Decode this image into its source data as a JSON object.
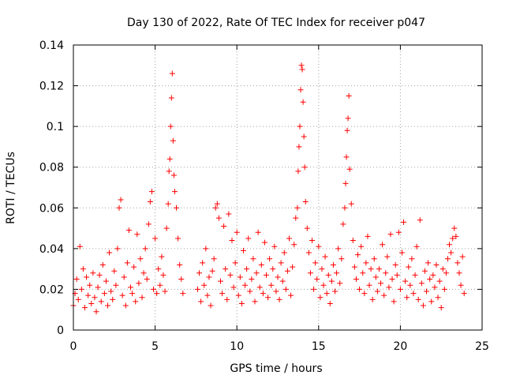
{
  "chart_data": {
    "type": "scatter",
    "title": "Day 130 of 2022, Rate Of TEC Index for receiver p047",
    "xlabel": "GPS time / hours",
    "ylabel": "ROTI / TECUs",
    "xlim": [
      0,
      25
    ],
    "ylim": [
      0,
      0.14
    ],
    "xticks": [
      0,
      5,
      10,
      15,
      20,
      25
    ],
    "xtick_labels": [
      "0",
      "5",
      "10",
      "15",
      "20",
      "25"
    ],
    "yticks": [
      0,
      0.02,
      0.04,
      0.06,
      0.08,
      0.1,
      0.12,
      0.14
    ],
    "ytick_labels": [
      "0",
      "0.02",
      "0.04",
      "0.06",
      "0.08",
      "0.1",
      "0.12",
      "0.14"
    ],
    "grid": true,
    "marker": "+",
    "color": "#ff0000",
    "series": [
      {
        "points": [
          [
            0.0,
            0.012
          ],
          [
            0.1,
            0.018
          ],
          [
            0.2,
            0.025
          ],
          [
            0.3,
            0.015
          ],
          [
            0.4,
            0.041
          ],
          [
            0.5,
            0.02
          ],
          [
            0.6,
            0.03
          ],
          [
            0.7,
            0.011
          ],
          [
            0.8,
            0.026
          ],
          [
            0.9,
            0.017
          ],
          [
            1.0,
            0.022
          ],
          [
            1.1,
            0.013
          ],
          [
            1.2,
            0.028
          ],
          [
            1.3,
            0.016
          ],
          [
            1.4,
            0.009
          ],
          [
            1.5,
            0.021
          ],
          [
            1.6,
            0.027
          ],
          [
            1.7,
            0.014
          ],
          [
            1.8,
            0.032
          ],
          [
            1.9,
            0.018
          ],
          [
            2.0,
            0.024
          ],
          [
            2.1,
            0.012
          ],
          [
            2.2,
            0.038
          ],
          [
            2.3,
            0.019
          ],
          [
            2.4,
            0.015
          ],
          [
            2.5,
            0.029
          ],
          [
            2.6,
            0.022
          ],
          [
            2.7,
            0.04
          ],
          [
            2.8,
            0.06
          ],
          [
            2.9,
            0.064
          ],
          [
            3.0,
            0.017
          ],
          [
            3.1,
            0.026
          ],
          [
            3.2,
            0.012
          ],
          [
            3.3,
            0.033
          ],
          [
            3.4,
            0.049
          ],
          [
            3.5,
            0.021
          ],
          [
            3.6,
            0.018
          ],
          [
            3.7,
            0.031
          ],
          [
            3.8,
            0.014
          ],
          [
            3.9,
            0.047
          ],
          [
            4.0,
            0.023
          ],
          [
            4.1,
            0.035
          ],
          [
            4.2,
            0.016
          ],
          [
            4.3,
            0.028
          ],
          [
            4.4,
            0.04
          ],
          [
            4.5,
            0.025
          ],
          [
            4.6,
            0.052
          ],
          [
            4.7,
            0.063
          ],
          [
            4.8,
            0.068
          ],
          [
            4.9,
            0.02
          ],
          [
            5.0,
            0.045
          ],
          [
            5.1,
            0.018
          ],
          [
            5.2,
            0.03
          ],
          [
            5.3,
            0.022
          ],
          [
            5.4,
            0.036
          ],
          [
            5.5,
            0.027
          ],
          [
            5.6,
            0.019
          ],
          [
            5.7,
            0.05
          ],
          [
            5.8,
            0.062
          ],
          [
            5.85,
            0.078
          ],
          [
            5.9,
            0.084
          ],
          [
            5.95,
            0.1
          ],
          [
            6.0,
            0.114
          ],
          [
            6.05,
            0.126
          ],
          [
            6.1,
            0.093
          ],
          [
            6.15,
            0.076
          ],
          [
            6.2,
            0.068
          ],
          [
            6.3,
            0.06
          ],
          [
            6.4,
            0.045
          ],
          [
            6.5,
            0.032
          ],
          [
            6.6,
            0.025
          ],
          [
            6.7,
            0.018
          ],
          [
            7.6,
            0.02
          ],
          [
            7.7,
            0.028
          ],
          [
            7.8,
            0.014
          ],
          [
            7.9,
            0.033
          ],
          [
            8.0,
            0.022
          ],
          [
            8.1,
            0.04
          ],
          [
            8.2,
            0.017
          ],
          [
            8.3,
            0.026
          ],
          [
            8.4,
            0.012
          ],
          [
            8.5,
            0.029
          ],
          [
            8.6,
            0.035
          ],
          [
            8.7,
            0.06
          ],
          [
            8.8,
            0.062
          ],
          [
            8.9,
            0.055
          ],
          [
            9.0,
            0.024
          ],
          [
            9.1,
            0.018
          ],
          [
            9.2,
            0.051
          ],
          [
            9.3,
            0.03
          ],
          [
            9.4,
            0.015
          ],
          [
            9.5,
            0.057
          ],
          [
            9.6,
            0.027
          ],
          [
            9.7,
            0.044
          ],
          [
            9.8,
            0.021
          ],
          [
            9.9,
            0.033
          ],
          [
            10.0,
            0.048
          ],
          [
            10.1,
            0.017
          ],
          [
            10.2,
            0.026
          ],
          [
            10.3,
            0.013
          ],
          [
            10.4,
            0.039
          ],
          [
            10.5,
            0.022
          ],
          [
            10.6,
            0.03
          ],
          [
            10.7,
            0.045
          ],
          [
            10.8,
            0.019
          ],
          [
            10.9,
            0.025
          ],
          [
            11.0,
            0.035
          ],
          [
            11.1,
            0.014
          ],
          [
            11.2,
            0.028
          ],
          [
            11.3,
            0.048
          ],
          [
            11.4,
            0.021
          ],
          [
            11.5,
            0.032
          ],
          [
            11.6,
            0.018
          ],
          [
            11.7,
            0.043
          ],
          [
            11.8,
            0.027
          ],
          [
            11.9,
            0.016
          ],
          [
            12.0,
            0.035
          ],
          [
            12.1,
            0.022
          ],
          [
            12.2,
            0.03
          ],
          [
            12.3,
            0.041
          ],
          [
            12.4,
            0.019
          ],
          [
            12.5,
            0.026
          ],
          [
            12.6,
            0.015
          ],
          [
            12.7,
            0.033
          ],
          [
            12.8,
            0.024
          ],
          [
            12.9,
            0.038
          ],
          [
            13.0,
            0.02
          ],
          [
            13.1,
            0.029
          ],
          [
            13.2,
            0.045
          ],
          [
            13.3,
            0.017
          ],
          [
            13.4,
            0.031
          ],
          [
            13.5,
            0.042
          ],
          [
            13.6,
            0.055
          ],
          [
            13.7,
            0.06
          ],
          [
            13.75,
            0.078
          ],
          [
            13.8,
            0.09
          ],
          [
            13.85,
            0.1
          ],
          [
            13.9,
            0.118
          ],
          [
            13.95,
            0.13
          ],
          [
            14.0,
            0.128
          ],
          [
            14.05,
            0.112
          ],
          [
            14.1,
            0.095
          ],
          [
            14.15,
            0.08
          ],
          [
            14.2,
            0.063
          ],
          [
            14.3,
            0.05
          ],
          [
            14.4,
            0.038
          ],
          [
            14.5,
            0.028
          ],
          [
            14.6,
            0.044
          ],
          [
            14.7,
            0.02
          ],
          [
            14.8,
            0.033
          ],
          [
            14.9,
            0.025
          ],
          [
            15.0,
            0.041
          ],
          [
            15.1,
            0.016
          ],
          [
            15.2,
            0.03
          ],
          [
            15.3,
            0.022
          ],
          [
            15.4,
            0.036
          ],
          [
            15.5,
            0.018
          ],
          [
            15.6,
            0.027
          ],
          [
            15.7,
            0.013
          ],
          [
            15.8,
            0.024
          ],
          [
            15.9,
            0.032
          ],
          [
            16.0,
            0.019
          ],
          [
            16.1,
            0.028
          ],
          [
            16.2,
            0.04
          ],
          [
            16.3,
            0.023
          ],
          [
            16.4,
            0.035
          ],
          [
            16.5,
            0.052
          ],
          [
            16.6,
            0.06
          ],
          [
            16.65,
            0.072
          ],
          [
            16.7,
            0.085
          ],
          [
            16.75,
            0.098
          ],
          [
            16.8,
            0.104
          ],
          [
            16.85,
            0.115
          ],
          [
            16.9,
            0.079
          ],
          [
            17.0,
            0.062
          ],
          [
            17.1,
            0.044
          ],
          [
            17.2,
            0.031
          ],
          [
            17.3,
            0.025
          ],
          [
            17.4,
            0.037
          ],
          [
            17.5,
            0.02
          ],
          [
            17.6,
            0.041
          ],
          [
            17.7,
            0.028
          ],
          [
            17.8,
            0.018
          ],
          [
            17.9,
            0.033
          ],
          [
            18.0,
            0.046
          ],
          [
            18.1,
            0.022
          ],
          [
            18.2,
            0.03
          ],
          [
            18.3,
            0.015
          ],
          [
            18.4,
            0.035
          ],
          [
            18.5,
            0.026
          ],
          [
            18.6,
            0.019
          ],
          [
            18.7,
            0.03
          ],
          [
            18.8,
            0.023
          ],
          [
            18.9,
            0.042
          ],
          [
            19.0,
            0.017
          ],
          [
            19.1,
            0.028
          ],
          [
            19.2,
            0.036
          ],
          [
            19.3,
            0.021
          ],
          [
            19.4,
            0.047
          ],
          [
            19.5,
            0.025
          ],
          [
            19.6,
            0.014
          ],
          [
            19.7,
            0.032
          ],
          [
            19.8,
            0.027
          ],
          [
            19.9,
            0.048
          ],
          [
            20.0,
            0.02
          ],
          [
            20.1,
            0.038
          ],
          [
            20.2,
            0.053
          ],
          [
            20.3,
            0.024
          ],
          [
            20.4,
            0.016
          ],
          [
            20.5,
            0.031
          ],
          [
            20.6,
            0.022
          ],
          [
            20.7,
            0.035
          ],
          [
            20.8,
            0.018
          ],
          [
            20.9,
            0.027
          ],
          [
            21.0,
            0.041
          ],
          [
            21.1,
            0.015
          ],
          [
            21.2,
            0.054
          ],
          [
            21.3,
            0.023
          ],
          [
            21.4,
            0.012
          ],
          [
            21.5,
            0.029
          ],
          [
            21.6,
            0.019
          ],
          [
            21.7,
            0.033
          ],
          [
            21.8,
            0.025
          ],
          [
            21.9,
            0.014
          ],
          [
            22.0,
            0.027
          ],
          [
            22.1,
            0.021
          ],
          [
            22.2,
            0.032
          ],
          [
            22.3,
            0.016
          ],
          [
            22.4,
            0.024
          ],
          [
            22.5,
            0.011
          ],
          [
            22.6,
            0.03
          ],
          [
            22.7,
            0.02
          ],
          [
            22.8,
            0.028
          ],
          [
            22.9,
            0.035
          ],
          [
            23.0,
            0.042
          ],
          [
            23.1,
            0.038
          ],
          [
            23.2,
            0.045
          ],
          [
            23.3,
            0.05
          ],
          [
            23.4,
            0.046
          ],
          [
            23.5,
            0.033
          ],
          [
            23.6,
            0.028
          ],
          [
            23.7,
            0.022
          ],
          [
            23.8,
            0.036
          ],
          [
            23.9,
            0.018
          ]
        ]
      }
    ]
  }
}
